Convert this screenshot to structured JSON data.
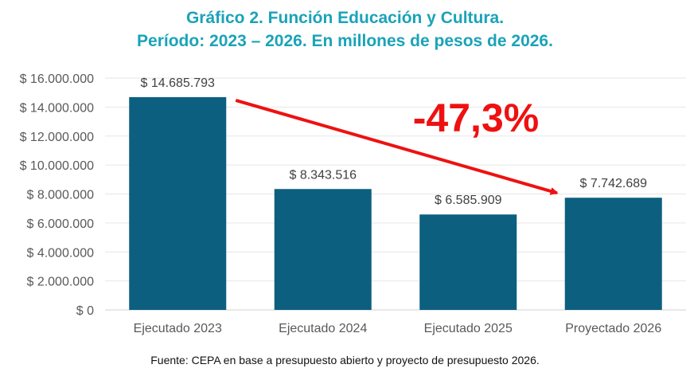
{
  "chart_data": {
    "type": "bar",
    "title_line1": "Gráfico 2. Función Educación y Cultura.",
    "title_line2": "Período: 2023 – 2026. En millones de pesos de 2026.",
    "categories": [
      "Ejecutado 2023",
      "Ejecutado 2024",
      "Ejecutado 2025",
      "Proyectado 2026"
    ],
    "values": [
      14685793,
      8343516,
      6585909,
      7742689
    ],
    "data_labels": [
      "$ 14.685.793",
      "$ 8.343.516",
      "$ 6.585.909",
      "$ 7.742.689"
    ],
    "ylim": [
      0,
      16000000
    ],
    "yticks": [
      0,
      2000000,
      4000000,
      6000000,
      8000000,
      10000000,
      12000000,
      14000000,
      16000000
    ],
    "ytick_labels": [
      "$ 0",
      "$ 2.000.000",
      "$ 4.000.000",
      "$ 6.000.000",
      "$ 8.000.000",
      "$ 10.000.000",
      "$ 12.000.000",
      "$ 14.000.000",
      "$ 16.000.000"
    ],
    "grid": true,
    "annotation": {
      "text": "-47,3%",
      "from_category": "Ejecutado 2023",
      "to_category": "Proyectado 2026",
      "color": "#ee1111"
    },
    "source": "Fuente: CEPA en base a presupuesto abierto y proyecto de presupuesto 2026."
  },
  "colors": {
    "title": "#1aa3b8",
    "bar": "#0c5f7f",
    "gridline": "#e6e6e6",
    "axis_text": "#595959",
    "annotation": "#ee1111"
  }
}
